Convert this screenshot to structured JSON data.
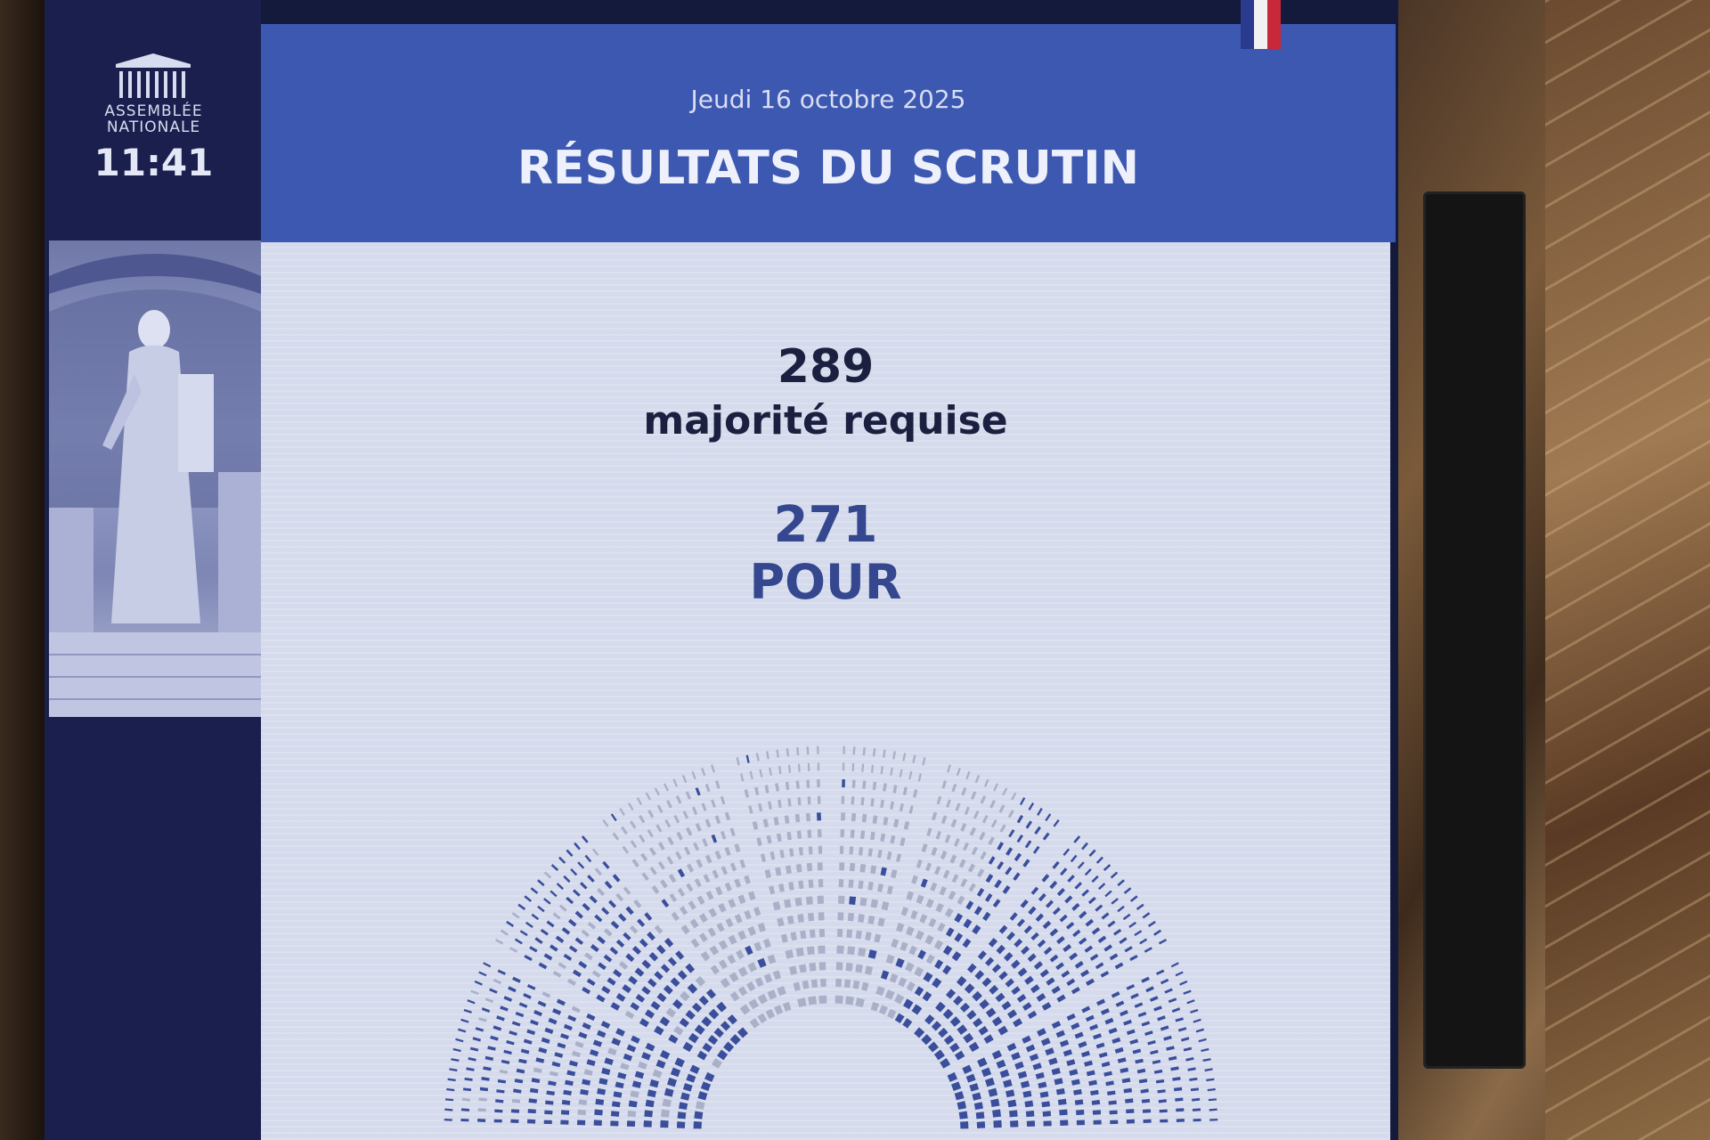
{
  "logo": {
    "line1": "ASSEMBLÉE",
    "line2": "NATIONALE"
  },
  "clock": "11:41",
  "header": {
    "date": "Jeudi 16 octobre 2025",
    "title": "RÉSULTATS DU SCRUTIN"
  },
  "results": {
    "majority_value": "289",
    "majority_label": "majorité requise",
    "for_value": "271",
    "for_label": "POUR"
  },
  "colors": {
    "dark_text": "#1c2040",
    "pour": "#3a4e9c",
    "seat_empty": "#a9b0c8",
    "header_bg": "#3c58b0",
    "sidebar_bg": "#1a1f4e"
  }
}
